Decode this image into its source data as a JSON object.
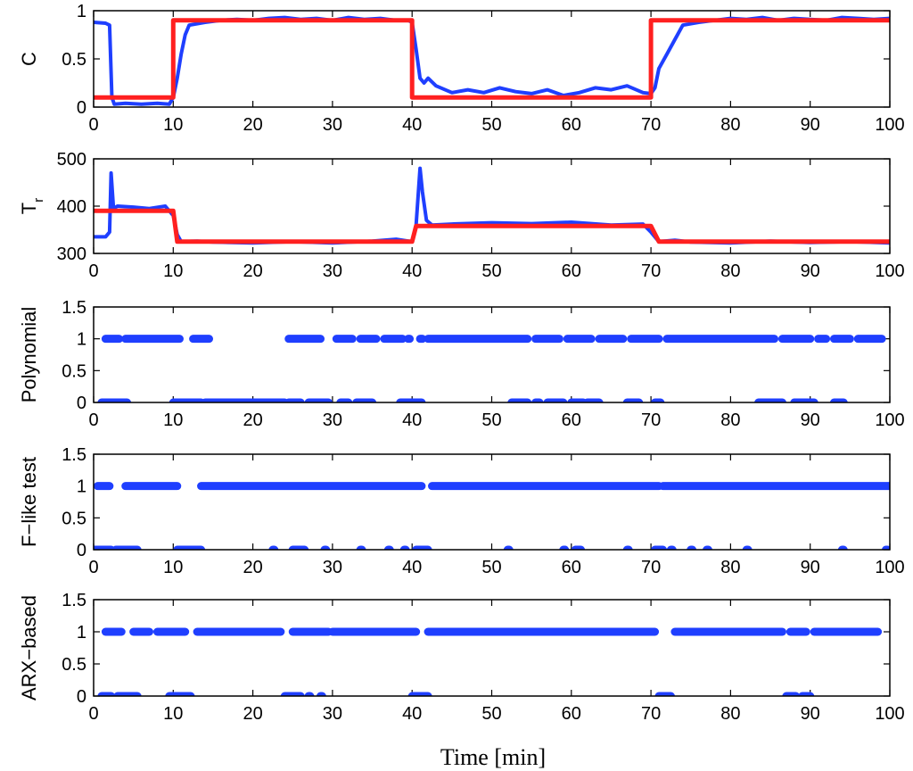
{
  "xlabel": "Time [min]",
  "colors": {
    "estimate": "#1f3fff",
    "reference": "#ff2020",
    "points": "#1f3fff"
  },
  "chart_data": [
    {
      "type": "line",
      "ylabel": "C",
      "xlim": [
        0,
        100
      ],
      "ylim": [
        0,
        1
      ],
      "xticks": [
        0,
        10,
        20,
        30,
        40,
        50,
        60,
        70,
        80,
        90,
        100
      ],
      "yticks": [
        "0",
        "0.5",
        "1"
      ],
      "ytick_values": [
        0,
        0.5,
        1
      ],
      "series": [
        {
          "role": "estimate",
          "x": [
            0,
            1.5,
            2,
            2.3,
            2.6,
            4,
            6,
            8,
            9.5,
            10,
            10.5,
            11,
            11.5,
            12,
            14,
            16,
            18,
            20,
            22,
            24,
            26,
            28,
            30,
            32,
            34,
            36,
            38,
            39.5,
            40,
            40.5,
            41,
            41.5,
            42,
            43,
            45,
            47,
            49,
            51,
            53,
            55,
            57,
            59,
            61,
            63,
            65,
            67,
            69,
            70,
            70.5,
            71,
            72,
            73,
            74,
            76,
            78,
            80,
            82,
            84,
            86,
            88,
            90,
            92,
            94,
            96,
            98,
            100
          ],
          "y": [
            0.88,
            0.87,
            0.85,
            0.1,
            0.03,
            0.04,
            0.03,
            0.04,
            0.03,
            0.1,
            0.3,
            0.55,
            0.75,
            0.85,
            0.88,
            0.9,
            0.91,
            0.9,
            0.92,
            0.93,
            0.91,
            0.92,
            0.9,
            0.93,
            0.91,
            0.92,
            0.9,
            0.9,
            0.88,
            0.6,
            0.3,
            0.25,
            0.3,
            0.22,
            0.15,
            0.18,
            0.15,
            0.2,
            0.16,
            0.14,
            0.18,
            0.12,
            0.15,
            0.2,
            0.18,
            0.22,
            0.15,
            0.14,
            0.2,
            0.4,
            0.55,
            0.7,
            0.85,
            0.88,
            0.9,
            0.92,
            0.91,
            0.93,
            0.9,
            0.92,
            0.91,
            0.9,
            0.93,
            0.92,
            0.91,
            0.92
          ]
        },
        {
          "role": "reference",
          "x": [
            0,
            10,
            10,
            40,
            40,
            70,
            70,
            100
          ],
          "y": [
            0.1,
            0.1,
            0.9,
            0.9,
            0.1,
            0.1,
            0.9,
            0.9
          ]
        }
      ]
    },
    {
      "type": "line",
      "ylabel": "T",
      "ylabel_sub": "r",
      "xlim": [
        0,
        100
      ],
      "ylim": [
        300,
        500
      ],
      "xticks": [
        0,
        10,
        20,
        30,
        40,
        50,
        60,
        70,
        80,
        90,
        100
      ],
      "yticks": [
        "300",
        "400",
        "500"
      ],
      "ytick_values": [
        300,
        400,
        500
      ],
      "series": [
        {
          "role": "estimate",
          "x": [
            0,
            1.5,
            2,
            2.2,
            2.5,
            3,
            5,
            7,
            9,
            10,
            10.5,
            11,
            13,
            15,
            20,
            25,
            30,
            35,
            38,
            40,
            40.5,
            41,
            41.3,
            41.8,
            42.5,
            45,
            50,
            55,
            60,
            65,
            69,
            70,
            71,
            73,
            75,
            80,
            85,
            90,
            95,
            100
          ],
          "y": [
            335,
            335,
            345,
            470,
            395,
            400,
            398,
            395,
            400,
            380,
            340,
            325,
            326,
            324,
            322,
            325,
            322,
            326,
            330,
            325,
            360,
            480,
            430,
            370,
            360,
            362,
            365,
            363,
            366,
            360,
            362,
            345,
            325,
            328,
            324,
            322,
            326,
            323,
            325,
            322
          ]
        },
        {
          "role": "reference",
          "x": [
            0,
            10,
            10.5,
            40,
            40.5,
            70,
            71,
            100
          ],
          "y": [
            390,
            390,
            325,
            325,
            358,
            358,
            325,
            325
          ]
        }
      ]
    },
    {
      "type": "scatter",
      "ylabel": "Polynomial",
      "xlim": [
        0,
        100
      ],
      "ylim": [
        0,
        1.5
      ],
      "xticks": [
        0,
        10,
        20,
        30,
        40,
        50,
        60,
        70,
        80,
        90,
        100
      ],
      "yticks": [
        "0",
        "0.5",
        "1",
        "1.5"
      ],
      "ytick_values": [
        0,
        0.5,
        1,
        1.5
      ],
      "ones_segments": [
        [
          1.5,
          3.2
        ],
        [
          4,
          10.8
        ],
        [
          12.5,
          14.5
        ],
        [
          24.5,
          28.5
        ],
        [
          30.5,
          32.5
        ],
        [
          33.5,
          35.5
        ],
        [
          36.5,
          38.8
        ],
        [
          39.5,
          39.7
        ],
        [
          41,
          41.3
        ],
        [
          42,
          54.5
        ],
        [
          55.5,
          58.5
        ],
        [
          59.5,
          62.5
        ],
        [
          63.5,
          66.5
        ],
        [
          67.5,
          71
        ],
        [
          72,
          85.5
        ],
        [
          86.5,
          90
        ],
        [
          91,
          92
        ],
        [
          93,
          95
        ],
        [
          96,
          99
        ]
      ],
      "zeros_segments": [
        [
          1,
          4.2
        ],
        [
          10,
          13.5
        ],
        [
          14,
          24
        ],
        [
          24.5,
          26
        ],
        [
          27,
          29.5
        ],
        [
          31,
          32
        ],
        [
          33,
          35
        ],
        [
          38.5,
          41.2
        ],
        [
          52.5,
          54.5
        ],
        [
          55.5,
          56
        ],
        [
          57,
          59
        ],
        [
          60,
          61.5
        ],
        [
          62,
          63.5
        ],
        [
          67,
          68.5
        ],
        [
          70.5,
          71.2
        ],
        [
          83.5,
          86.5
        ],
        [
          88,
          90.5
        ],
        [
          93,
          94.2
        ]
      ]
    },
    {
      "type": "scatter",
      "ylabel": "F−like test",
      "xlim": [
        0,
        100
      ],
      "ylim": [
        0,
        1.5
      ],
      "xticks": [
        0,
        10,
        20,
        30,
        40,
        50,
        60,
        70,
        80,
        90,
        100
      ],
      "yticks": [
        "0",
        "0.5",
        "1",
        "1.5"
      ],
      "ytick_values": [
        0,
        0.5,
        1,
        1.5
      ],
      "ones_segments": [
        [
          0.5,
          2
        ],
        [
          4,
          10.5
        ],
        [
          13.5,
          41.2
        ],
        [
          42.5,
          71
        ],
        [
          71.5,
          100
        ]
      ],
      "zeros_segments": [
        [
          0,
          2.2
        ],
        [
          2.8,
          5.5
        ],
        [
          10.5,
          13.5
        ],
        [
          22.5,
          22.7
        ],
        [
          25,
          26.5
        ],
        [
          29,
          29.2
        ],
        [
          33.5,
          33.7
        ],
        [
          37,
          37.2
        ],
        [
          39,
          39.2
        ],
        [
          40.5,
          42
        ],
        [
          52,
          52.2
        ],
        [
          59,
          59.2
        ],
        [
          60.5,
          61.2
        ],
        [
          67,
          67.2
        ],
        [
          70.5,
          71.5
        ],
        [
          72.5,
          72.7
        ],
        [
          75,
          75.2
        ],
        [
          77,
          77.2
        ],
        [
          82,
          82.2
        ],
        [
          94,
          94.2
        ],
        [
          99.5,
          99.7
        ]
      ]
    },
    {
      "type": "scatter",
      "ylabel": "ARX−based",
      "xlim": [
        0,
        100
      ],
      "ylim": [
        0,
        1.5
      ],
      "xticks": [
        0,
        10,
        20,
        30,
        40,
        50,
        60,
        70,
        80,
        90,
        100
      ],
      "yticks": [
        "0",
        "0.5",
        "1",
        "1.5"
      ],
      "ytick_values": [
        0,
        0.5,
        1,
        1.5
      ],
      "ones_segments": [
        [
          1.5,
          3.5
        ],
        [
          5,
          7
        ],
        [
          8,
          11.5
        ],
        [
          13,
          23.5
        ],
        [
          25,
          29.5
        ],
        [
          30,
          40.5
        ],
        [
          42,
          70.5
        ],
        [
          73,
          86.5
        ],
        [
          87.5,
          89.5
        ],
        [
          90.5,
          98.5
        ]
      ],
      "zeros_segments": [
        [
          1,
          2.2
        ],
        [
          3,
          5.5
        ],
        [
          9.5,
          12.2
        ],
        [
          24,
          26
        ],
        [
          27,
          27.2
        ],
        [
          28.5,
          28.7
        ],
        [
          40,
          42
        ],
        [
          71,
          72.5
        ],
        [
          87,
          88.2
        ],
        [
          89,
          90
        ]
      ]
    }
  ]
}
